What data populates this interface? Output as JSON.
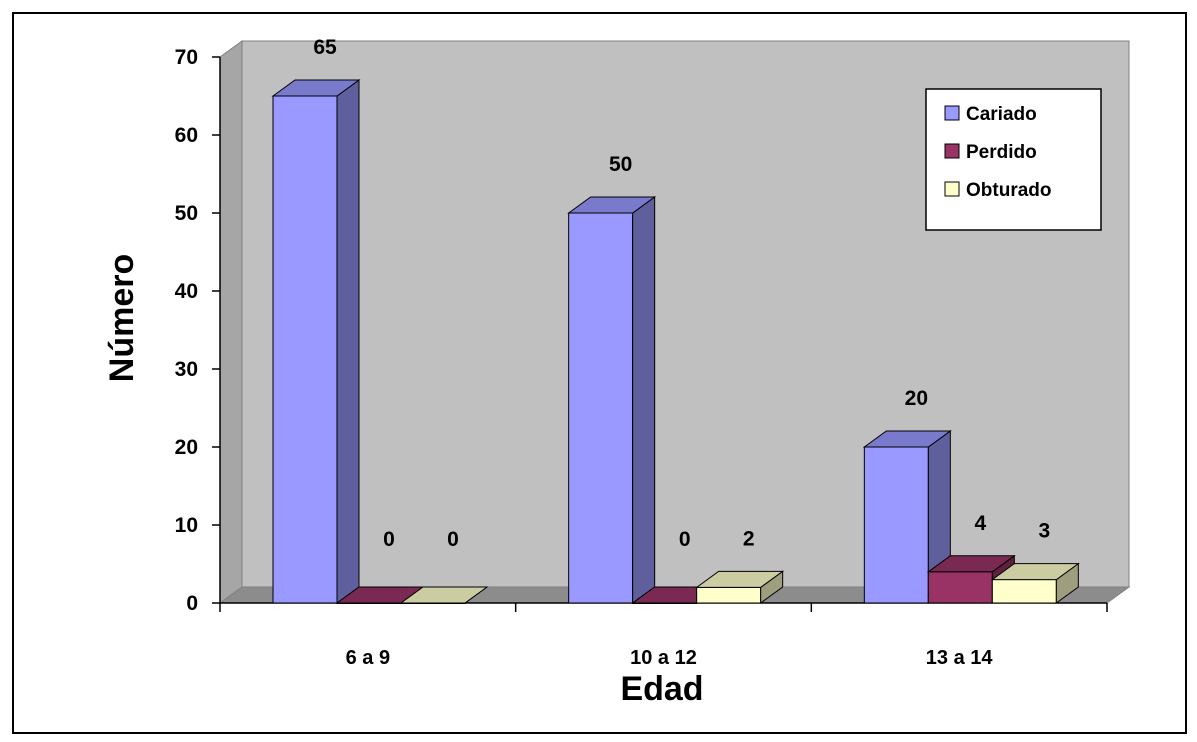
{
  "chart_data": {
    "type": "bar",
    "title": "",
    "xlabel": "Edad",
    "ylabel": "Número",
    "ylim": [
      0,
      70
    ],
    "yticks": [
      "0",
      "10",
      "20",
      "30",
      "40",
      "50",
      "60",
      "70"
    ],
    "categories": [
      "6 a 9",
      "10 a 12",
      "13 a 14"
    ],
    "series": [
      {
        "name": "Cariado",
        "values": [
          65,
          50,
          20
        ],
        "color": "#9999ff"
      },
      {
        "name": "Perdido",
        "values": [
          0,
          0,
          4
        ],
        "color": "#993366"
      },
      {
        "name": "Obturado",
        "values": [
          0,
          2,
          3
        ],
        "color": "#ffffcc"
      }
    ],
    "grid": false,
    "legend": "top-right",
    "wall_color": "#c0c0c0",
    "three_d": true
  }
}
